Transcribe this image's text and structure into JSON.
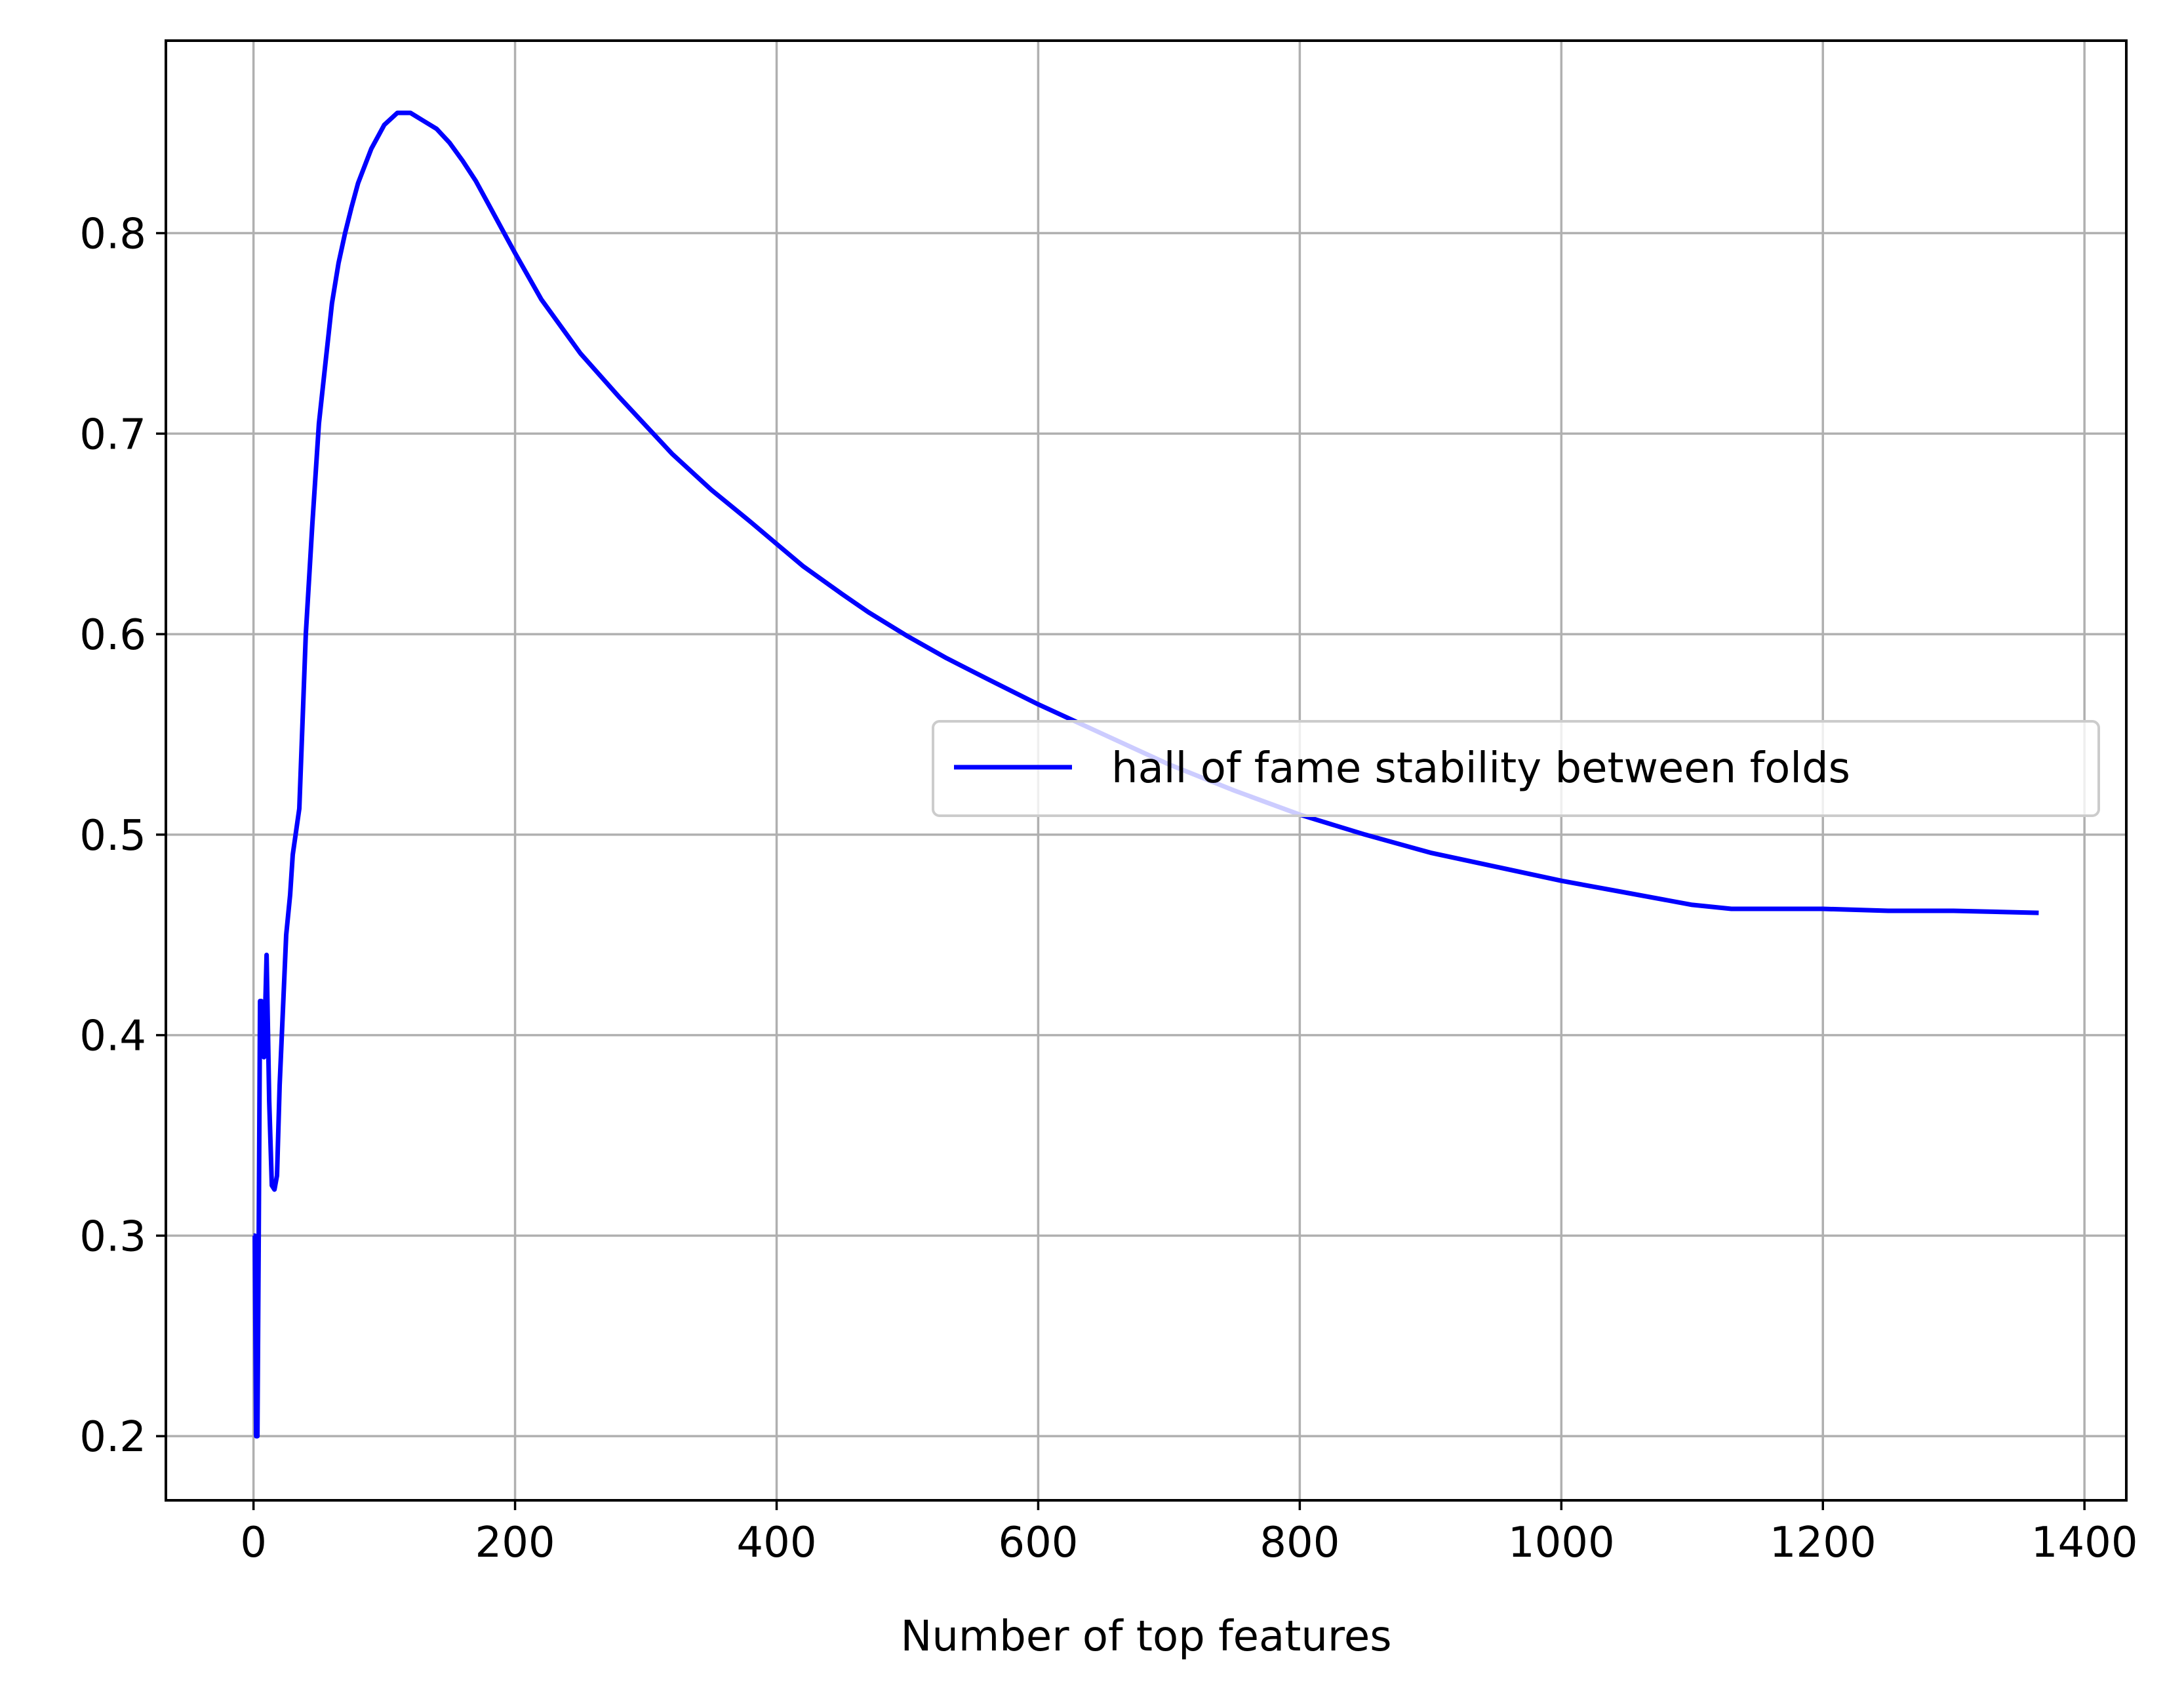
{
  "chart_data": {
    "type": "line",
    "title": "",
    "xlabel": "Number of top features",
    "ylabel": "",
    "xlim": [
      -67,
      1432
    ],
    "ylim": [
      0.168,
      0.896
    ],
    "xticks": [
      0,
      200,
      400,
      600,
      800,
      1000,
      1200,
      1400
    ],
    "xtick_labels": [
      "0",
      "200",
      "400",
      "600",
      "800",
      "1000",
      "1200",
      "1400"
    ],
    "yticks": [
      0.2,
      0.3,
      0.4,
      0.5,
      0.6,
      0.7,
      0.8
    ],
    "ytick_labels": [
      "0.2",
      "0.3",
      "0.4",
      "0.5",
      "0.6",
      "0.7",
      "0.8"
    ],
    "grid": true,
    "legend_position": "center-right",
    "series": [
      {
        "name": "hall of fame stability between folds",
        "color": "#0000ff",
        "x": [
          0,
          1,
          2,
          3,
          4,
          5,
          6,
          7,
          8,
          10,
          12,
          14,
          16,
          18,
          20,
          22,
          25,
          28,
          30,
          35,
          40,
          45,
          50,
          55,
          60,
          65,
          70,
          75,
          80,
          90,
          100,
          110,
          120,
          130,
          140,
          150,
          160,
          170,
          180,
          190,
          200,
          220,
          250,
          280,
          300,
          320,
          350,
          380,
          400,
          420,
          450,
          470,
          500,
          530,
          560,
          600,
          650,
          700,
          750,
          800,
          850,
          900,
          950,
          1000,
          1050,
          1100,
          1130,
          1150,
          1200,
          1250,
          1300,
          1365
        ],
        "values": [
          0.3,
          0.3,
          0.2,
          0.2,
          0.3,
          0.417,
          0.417,
          0.4,
          0.389,
          0.44,
          0.367,
          0.325,
          0.323,
          0.33,
          0.375,
          0.405,
          0.45,
          0.47,
          0.49,
          0.513,
          0.6,
          0.655,
          0.705,
          0.735,
          0.765,
          0.785,
          0.8,
          0.813,
          0.825,
          0.842,
          0.854,
          0.86,
          0.86,
          0.856,
          0.852,
          0.845,
          0.836,
          0.826,
          0.814,
          0.802,
          0.79,
          0.767,
          0.74,
          0.718,
          0.704,
          0.69,
          0.672,
          0.656,
          0.645,
          0.634,
          0.62,
          0.611,
          0.599,
          0.588,
          0.578,
          0.565,
          0.55,
          0.535,
          0.522,
          0.51,
          0.5,
          0.491,
          0.484,
          0.477,
          0.471,
          0.465,
          0.463,
          0.463,
          0.463,
          0.462,
          0.462,
          0.461
        ]
      }
    ]
  }
}
